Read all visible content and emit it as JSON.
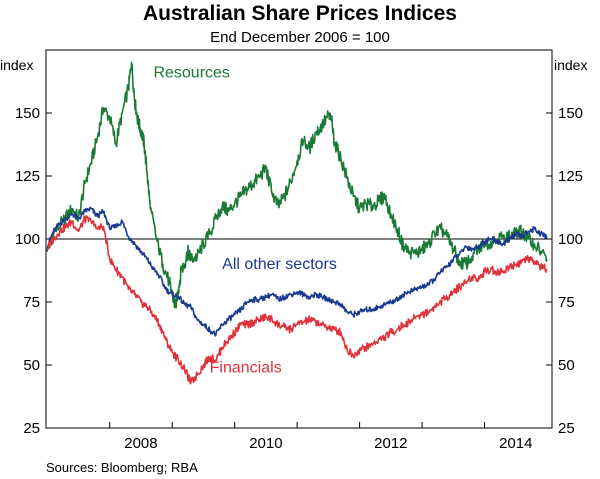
{
  "chart_data": {
    "type": "line",
    "title": "Australian Share Prices Indices",
    "subtitle": "End December 2006 = 100",
    "ylabel_left": "index",
    "ylabel_right": "index",
    "ylim": [
      25,
      175
    ],
    "yticks": [
      25,
      50,
      75,
      100,
      125,
      150
    ],
    "xlim": [
      2006.48,
      2014.58
    ],
    "xticks": [
      {
        "label": "2008",
        "value": 2008.0
      },
      {
        "label": "2010",
        "value": 2010.0
      },
      {
        "label": "2012",
        "value": 2012.0
      },
      {
        "label": "2014",
        "value": 2014.0
      }
    ],
    "year_dividers": [
      2007.5,
      2008.5,
      2009.5,
      2010.5,
      2011.5,
      2012.5,
      2013.5
    ],
    "reference_line": 100,
    "series": [
      {
        "name": "Resources",
        "color": "#1a7a35",
        "x": [
          2006.5,
          2006.6,
          2006.75,
          2006.9,
          2007.0,
          2007.1,
          2007.2,
          2007.3,
          2007.4,
          2007.5,
          2007.6,
          2007.7,
          2007.8,
          2007.85,
          2007.9,
          2007.95,
          2008.0,
          2008.05,
          2008.1,
          2008.15,
          2008.25,
          2008.35,
          2008.45,
          2008.5,
          2008.55,
          2008.6,
          2008.65,
          2008.7,
          2008.75,
          2008.8,
          2008.9,
          2009.0,
          2009.1,
          2009.2,
          2009.3,
          2009.4,
          2009.5,
          2009.6,
          2009.7,
          2009.8,
          2009.9,
          2010.0,
          2010.1,
          2010.2,
          2010.3,
          2010.4,
          2010.5,
          2010.6,
          2010.7,
          2010.8,
          2010.9,
          2011.0,
          2011.05,
          2011.1,
          2011.2,
          2011.3,
          2011.4,
          2011.5,
          2011.6,
          2011.7,
          2011.8,
          2011.9,
          2012.0,
          2012.1,
          2012.2,
          2012.3,
          2012.4,
          2012.5,
          2012.6,
          2012.7,
          2012.8,
          2012.9,
          2013.0,
          2013.1,
          2013.2,
          2013.3,
          2013.4,
          2013.5,
          2013.6,
          2013.7,
          2013.8,
          2013.9,
          2014.0,
          2014.1,
          2014.2,
          2014.3,
          2014.4,
          2014.5
        ],
        "values": [
          95,
          102,
          107,
          112,
          108,
          122,
          130,
          140,
          152,
          148,
          138,
          150,
          160,
          170,
          155,
          147,
          143,
          138,
          126,
          112,
          100,
          90,
          83,
          78,
          73,
          80,
          88,
          90,
          95,
          92,
          93,
          98,
          102,
          108,
          113,
          111,
          114,
          117,
          120,
          122,
          125,
          128,
          118,
          113,
          117,
          123,
          131,
          139,
          136,
          142,
          145,
          149,
          147,
          138,
          132,
          124,
          117,
          112,
          114,
          113,
          115,
          117,
          110,
          104,
          97,
          95,
          94,
          96,
          98,
          102,
          104,
          101,
          96,
          91,
          90,
          93,
          96,
          98,
          99,
          100,
          101,
          101,
          102,
          103,
          100,
          98,
          95,
          92
        ]
      },
      {
        "name": "All other sectors",
        "color": "#1a3a8f",
        "x": [
          2006.5,
          2006.6,
          2006.7,
          2006.8,
          2006.9,
          2007.0,
          2007.1,
          2007.2,
          2007.3,
          2007.4,
          2007.5,
          2007.6,
          2007.7,
          2007.8,
          2007.9,
          2008.0,
          2008.1,
          2008.2,
          2008.3,
          2008.4,
          2008.5,
          2008.6,
          2008.7,
          2008.8,
          2008.9,
          2009.0,
          2009.1,
          2009.2,
          2009.3,
          2009.4,
          2009.5,
          2009.6,
          2009.7,
          2009.8,
          2009.9,
          2010.0,
          2010.1,
          2010.2,
          2010.3,
          2010.4,
          2010.5,
          2010.6,
          2010.7,
          2010.8,
          2010.9,
          2011.0,
          2011.1,
          2011.2,
          2011.3,
          2011.4,
          2011.5,
          2011.6,
          2011.7,
          2011.8,
          2011.9,
          2012.0,
          2012.1,
          2012.2,
          2012.3,
          2012.4,
          2012.5,
          2012.6,
          2012.7,
          2012.8,
          2012.9,
          2013.0,
          2013.1,
          2013.2,
          2013.3,
          2013.4,
          2013.5,
          2013.6,
          2013.7,
          2013.8,
          2013.9,
          2014.0,
          2014.1,
          2014.2,
          2014.3,
          2014.4,
          2014.5
        ],
        "values": [
          97,
          103,
          106,
          108,
          110,
          108,
          111,
          112,
          109,
          111,
          104,
          105,
          107,
          101,
          98,
          95,
          92,
          88,
          85,
          80,
          78,
          77,
          74,
          73,
          68,
          66,
          64,
          62,
          66,
          68,
          70,
          72,
          75,
          76,
          76,
          77,
          78,
          76,
          77,
          78,
          79,
          78,
          77,
          78,
          77,
          76,
          75,
          74,
          71,
          70,
          71,
          72,
          72,
          73,
          74,
          75,
          76,
          78,
          79,
          80,
          81,
          82,
          84,
          87,
          89,
          92,
          94,
          97,
          96,
          97,
          99,
          100,
          99,
          98,
          100,
          102,
          101,
          103,
          104,
          102,
          101
        ]
      },
      {
        "name": "Financials",
        "color": "#e0323a",
        "x": [
          2006.5,
          2006.6,
          2006.7,
          2006.8,
          2006.9,
          2007.0,
          2007.1,
          2007.2,
          2007.3,
          2007.4,
          2007.5,
          2007.6,
          2007.7,
          2007.8,
          2007.9,
          2008.0,
          2008.1,
          2008.2,
          2008.3,
          2008.4,
          2008.5,
          2008.6,
          2008.7,
          2008.8,
          2008.9,
          2009.0,
          2009.1,
          2009.2,
          2009.3,
          2009.4,
          2009.5,
          2009.6,
          2009.7,
          2009.8,
          2009.9,
          2010.0,
          2010.1,
          2010.2,
          2010.3,
          2010.4,
          2010.5,
          2010.6,
          2010.7,
          2010.8,
          2010.9,
          2011.0,
          2011.1,
          2011.2,
          2011.3,
          2011.4,
          2011.5,
          2011.6,
          2011.7,
          2011.8,
          2011.9,
          2012.0,
          2012.1,
          2012.2,
          2012.3,
          2012.4,
          2012.5,
          2012.6,
          2012.7,
          2012.8,
          2012.9,
          2013.0,
          2013.1,
          2013.2,
          2013.3,
          2013.4,
          2013.5,
          2013.6,
          2013.7,
          2013.8,
          2013.9,
          2014.0,
          2014.1,
          2014.2,
          2014.3,
          2014.4,
          2014.5
        ],
        "values": [
          96,
          100,
          103,
          105,
          107,
          103,
          108,
          107,
          104,
          105,
          92,
          88,
          85,
          80,
          78,
          75,
          73,
          70,
          66,
          60,
          55,
          52,
          48,
          43,
          46,
          50,
          53,
          52,
          57,
          60,
          63,
          66,
          66,
          67,
          68,
          69,
          68,
          66,
          65,
          64,
          66,
          67,
          68,
          67,
          66,
          65,
          64,
          63,
          56,
          54,
          56,
          57,
          58,
          60,
          61,
          63,
          64,
          66,
          67,
          69,
          70,
          71,
          73,
          75,
          77,
          79,
          81,
          83,
          85,
          84,
          87,
          88,
          87,
          87,
          89,
          90,
          91,
          92,
          91,
          89,
          88
        ]
      }
    ],
    "annotations": [
      {
        "text": "Resources",
        "series": "Resources",
        "x": 2008.2,
        "y": 164
      },
      {
        "text": "All other sectors",
        "series": "All other sectors",
        "x": 2009.3,
        "y": 88
      },
      {
        "text": "Financials",
        "series": "Financials",
        "x": 2009.1,
        "y": 47
      }
    ]
  },
  "sources": "Sources:  Bloomberg; RBA"
}
